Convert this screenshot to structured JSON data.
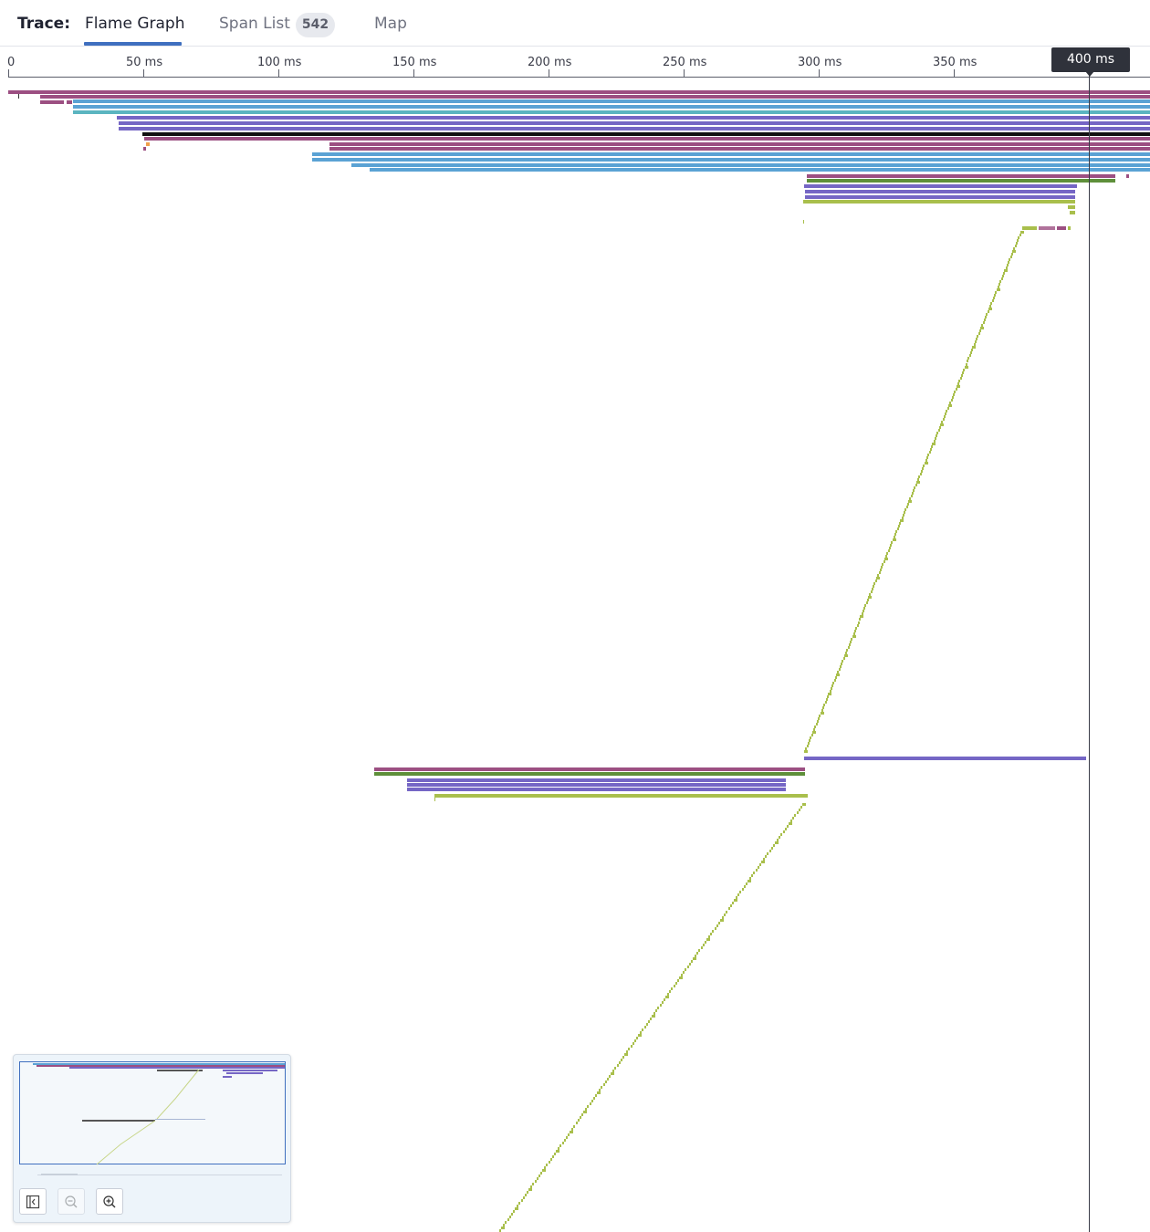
{
  "header": {
    "trace_label": "Trace:",
    "tabs": [
      {
        "label": "Flame Graph",
        "active": true
      },
      {
        "label": "Span List",
        "badge": "542"
      },
      {
        "label": "Map"
      }
    ]
  },
  "timeline": {
    "ticks": [
      "0",
      "50 ms",
      "100 ms",
      "150 ms",
      "200 ms",
      "250 ms",
      "300 ms",
      "350 ms"
    ],
    "cursor_label": "400 ms"
  },
  "colors": {
    "purple_red": "#9c4f82",
    "blue": "#5aa2d4",
    "teal": "#5bb5c0",
    "violet": "#7566c5",
    "black": "#111111",
    "green": "#5e8f3a",
    "yellow_green": "#a9bf4c",
    "orange": "#f0a04b",
    "accent": "#3f6fbf"
  },
  "minimap": {
    "buttons": [
      "collapse-icon",
      "zoom-out-icon",
      "zoom-in-icon"
    ]
  }
}
